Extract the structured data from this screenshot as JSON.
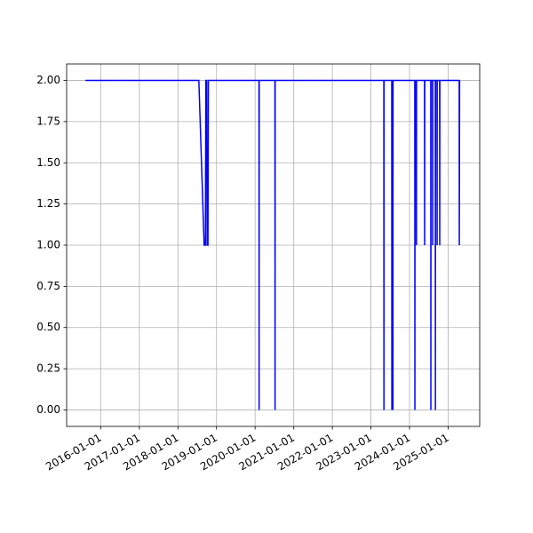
{
  "chart_data": {
    "type": "line",
    "x": [
      "2015-08-10",
      "2018-07-18",
      "2018-09-06",
      "2018-09-18",
      "2018-09-22",
      "2018-09-30",
      "2018-10-04",
      "2018-10-12",
      "2018-10-16",
      "2020-02-07",
      "2020-02-08",
      "2020-02-09",
      "2020-07-07",
      "2020-07-08",
      "2020-07-09",
      "2023-05-03",
      "2023-05-04",
      "2023-05-05",
      "2023-07-17",
      "2023-07-18",
      "2023-07-19",
      "2023-07-27",
      "2023-07-28",
      "2023-07-29",
      "2024-02-20",
      "2024-02-21",
      "2024-02-22",
      "2024-03-05",
      "2024-03-06",
      "2024-03-07",
      "2024-05-22",
      "2024-05-23",
      "2024-05-24",
      "2024-07-20",
      "2024-07-21",
      "2024-07-22",
      "2024-08-06",
      "2024-08-07",
      "2024-08-08",
      "2024-09-01",
      "2024-09-02",
      "2024-09-03",
      "2024-09-17",
      "2024-09-18",
      "2024-09-19",
      "2024-10-12",
      "2024-10-13",
      "2024-10-14",
      "2025-04-15",
      "2025-04-16",
      "2025-04-19"
    ],
    "values": [
      2,
      2,
      1,
      1,
      2,
      2,
      1,
      1,
      2,
      2,
      0,
      2,
      2,
      0,
      2,
      2,
      0,
      2,
      2,
      0,
      2,
      2,
      0,
      2,
      2,
      0,
      2,
      2,
      1,
      2,
      2,
      1,
      2,
      2,
      0,
      2,
      2,
      1,
      2,
      2,
      0,
      2,
      2,
      1,
      2,
      2,
      1,
      2,
      2,
      1,
      2
    ],
    "color": "blue",
    "xlim": [
      "2015-02-13",
      "2025-10-26"
    ],
    "xticks": [
      "2016-01-01",
      "2017-01-01",
      "2018-01-01",
      "2019-01-01",
      "2020-01-01",
      "2021-01-01",
      "2022-01-01",
      "2023-01-01",
      "2024-01-01",
      "2025-01-01"
    ],
    "ylim": [
      -0.1,
      2.1
    ],
    "yticks": [
      {
        "value": 0,
        "label": "0.00"
      },
      {
        "value": 0.25,
        "label": "0.25"
      },
      {
        "value": 0.5,
        "label": "0.50"
      },
      {
        "value": 0.75,
        "label": "0.75"
      },
      {
        "value": 1,
        "label": "1.00"
      },
      {
        "value": 1.25,
        "label": "1.25"
      },
      {
        "value": 1.5,
        "label": "1.50"
      },
      {
        "value": 1.75,
        "label": "1.75"
      },
      {
        "value": 2,
        "label": "2.00"
      }
    ],
    "grid": true
  }
}
